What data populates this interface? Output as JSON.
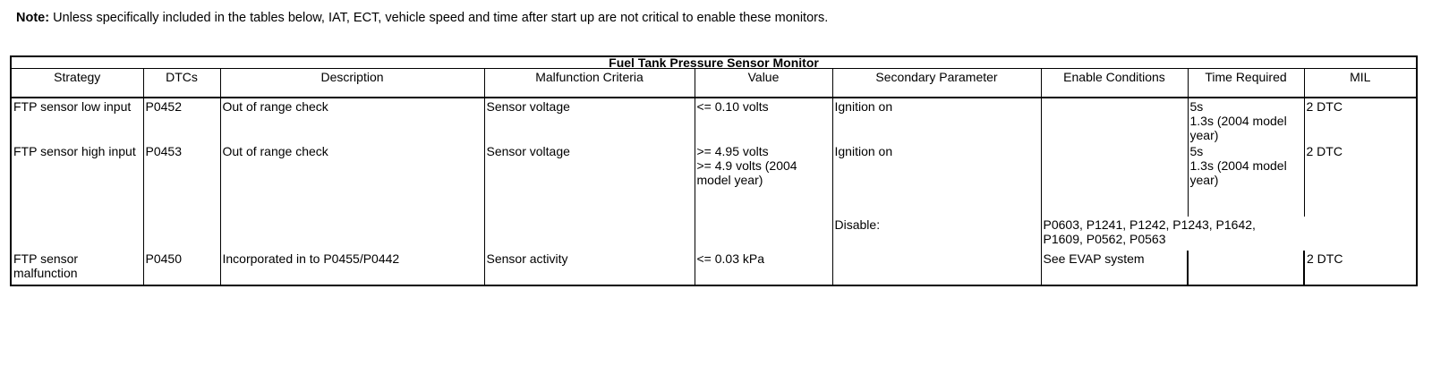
{
  "note": {
    "label": "Note:",
    "text": " Unless specifically included in the tables below, IAT, ECT, vehicle speed and time after start up are not critical to enable these monitors."
  },
  "table": {
    "title": "Fuel Tank Pressure Sensor Monitor",
    "headers": [
      "Strategy",
      "DTCs",
      "Description",
      "Malfunction Criteria",
      "Value",
      "Secondary Parameter",
      "Enable Conditions",
      "Time Required",
      "MIL"
    ],
    "rows": [
      {
        "strategy": "FTP sensor low input",
        "dtc": "P0452",
        "description": "Out of range check",
        "criteria": "Sensor voltage",
        "value": "<= 0.10 volts",
        "secondary": "Ignition on",
        "enable": "",
        "time": "5s\n1.3s (2004 model year)",
        "mil": "2 DTC"
      },
      {
        "strategy": "FTP sensor high input",
        "dtc": "P0453",
        "description": "Out of range check",
        "criteria": "Sensor voltage",
        "value": ">= 4.95 volts\n>= 4.9 volts (2004 model year)",
        "secondary": "Ignition on",
        "enable": "",
        "time": "5s\n1.3s (2004 model year)",
        "mil": "2 DTC"
      },
      {
        "secondary": "Disable:",
        "enable": "P0603, P1241, P1242, P1243, P1642, P1609, P0562, P0563"
      },
      {
        "strategy": "FTP sensor malfunction",
        "dtc": "P0450",
        "description": "Incorporated in to P0455/P0442",
        "criteria": "Sensor activity",
        "value": "<= 0.03 kPa",
        "secondary": "",
        "enable": "See EVAP system",
        "time": "",
        "mil": "2 DTC"
      }
    ]
  }
}
